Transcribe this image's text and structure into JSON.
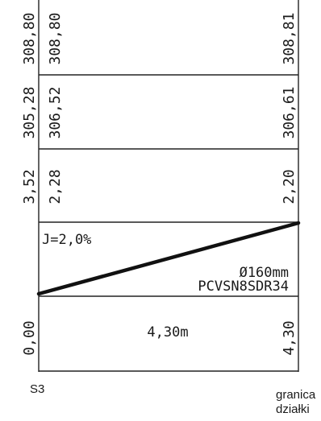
{
  "profile": {
    "left_column": {
      "ground_elevation": "308,80",
      "invert_elevation": "305,28",
      "depth": "3,52",
      "distance": "0,00"
    },
    "start_column": {
      "ground_elevation": "308,80",
      "invert_elevation": "306,52",
      "depth": "2,28"
    },
    "end_column": {
      "ground_elevation": "308,81",
      "invert_elevation": "306,61",
      "depth": "2,20",
      "distance": "4,30"
    },
    "slope_label": "J=2,0%",
    "pipe_diameter": "Ø160mm",
    "pipe_material": "PCVSN8SDR34",
    "segment_length": "4,30m",
    "start_station": "S3",
    "end_label_line1": "granica",
    "end_label_line2": "działki",
    "pipe_slope_percent": 2.0
  }
}
